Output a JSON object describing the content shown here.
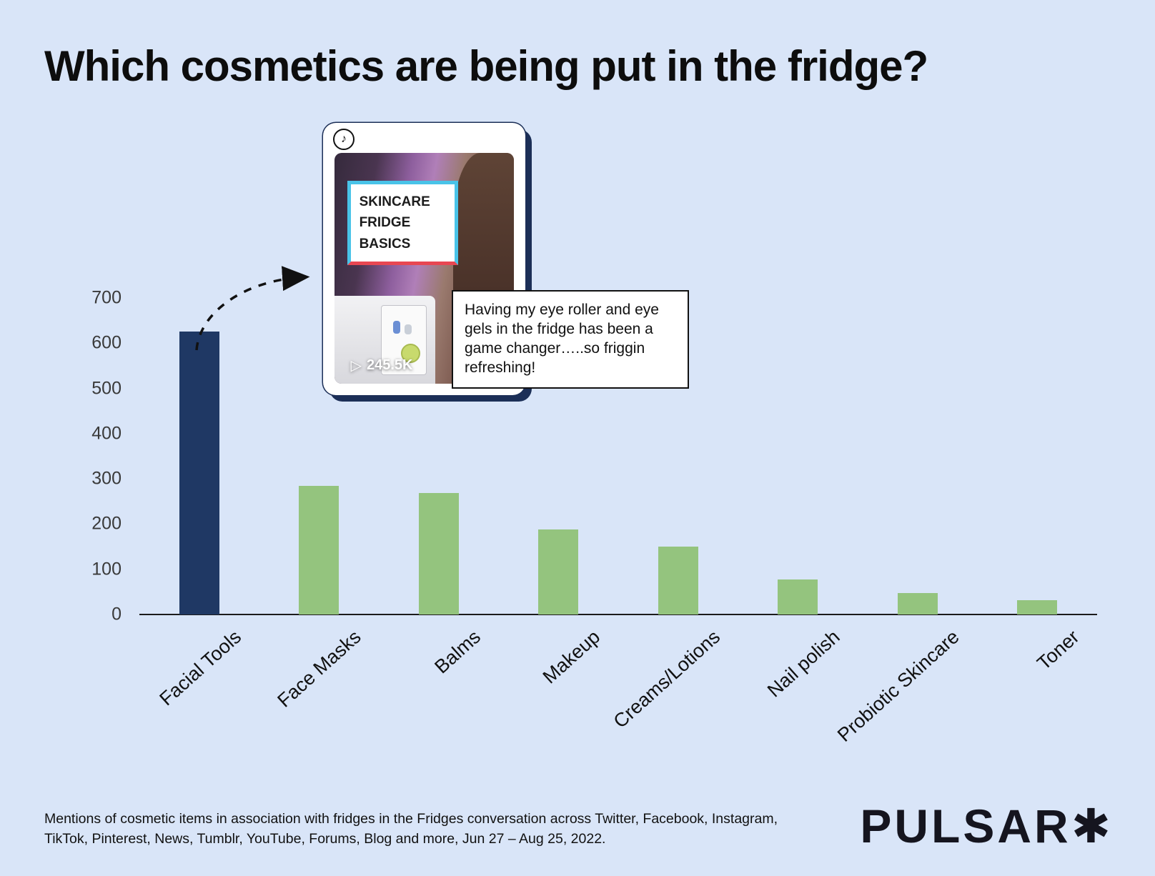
{
  "page": {
    "title": "Which cosmetics are being put in the fridge?"
  },
  "chart_data": {
    "type": "bar",
    "title": "Which cosmetics are being put in the fridge?",
    "categories": [
      "Facial Tools",
      "Face Masks",
      "Balms",
      "Makeup",
      "Creams/Lotions",
      "Nail polish",
      "Probiotic Skincare",
      "Toner"
    ],
    "values": [
      625,
      285,
      268,
      188,
      150,
      78,
      48,
      32
    ],
    "xlabel": "",
    "ylabel": "",
    "ylim": [
      0,
      700
    ],
    "ytick_step": 100,
    "grid": false,
    "legend": "none",
    "bar_colors": [
      "#1f3864",
      "#94c47e",
      "#94c47e",
      "#94c47e",
      "#94c47e",
      "#94c47e",
      "#94c47e",
      "#94c47e"
    ]
  },
  "tiktok_card": {
    "overlay_lines": [
      "SKINCARE",
      "FRIDGE",
      "BASICS"
    ],
    "play_count": "245.5K"
  },
  "icons": {
    "play": "▷",
    "tiktok_note": "♪"
  },
  "callout": {
    "text": "Having my eye roller and eye gels in the fridge has been a game changer…..so friggin refreshing!"
  },
  "footer": {
    "source": "Mentions of cosmetic items in association with fridges in the Fridges conversation across Twitter, Facebook, Instagram, TikTok, Pinterest, News, Tumblr, YouTube, Forums, Blog and more, Jun 27 – Aug 25, 2022.",
    "logo": "PULSAR✱"
  }
}
